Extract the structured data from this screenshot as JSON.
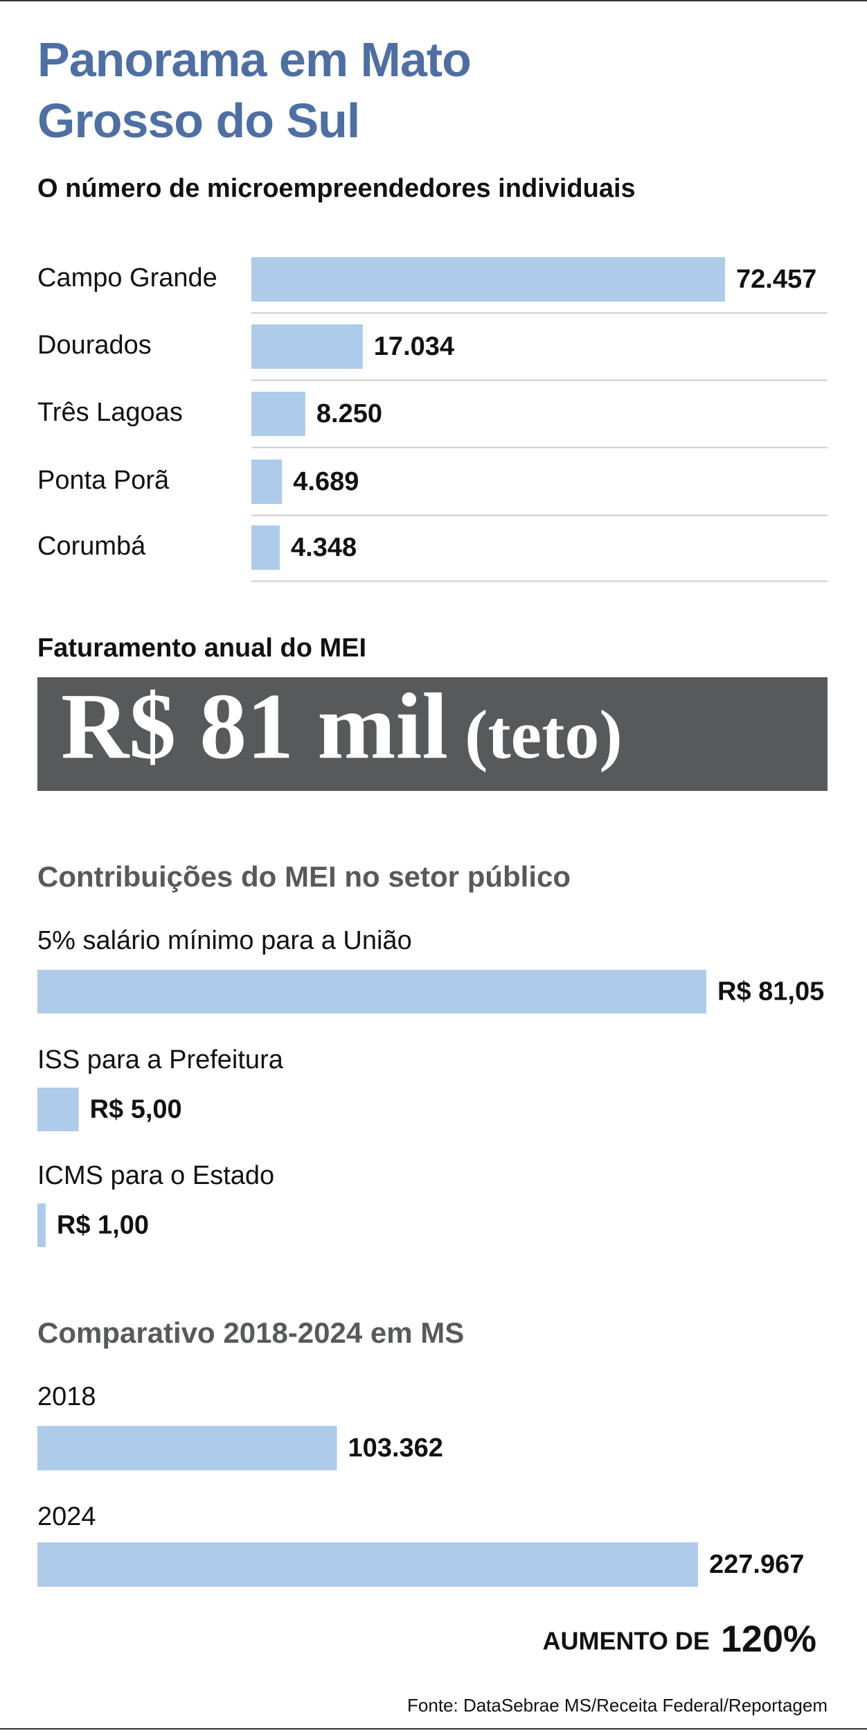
{
  "title": "Panorama em Mato Grosso do Sul",
  "chart_data": [
    {
      "type": "bar",
      "title": "O número de microempreendedores individuais",
      "categories": [
        "Campo Grande",
        "Dourados",
        "Três Lagoas",
        "Ponta Porã",
        "Corumbá"
      ],
      "values": [
        72457,
        17034,
        8250,
        4689,
        4348
      ],
      "value_labels": [
        "72.457",
        "17.034",
        "8.250",
        "4.689",
        "4.348"
      ],
      "color": "#aecbea"
    },
    {
      "type": "bar",
      "title": "Contribuições do MEI no setor público",
      "categories": [
        "5% salário mínimo para a União",
        "ISS para a Prefeitura",
        "ICMS para o Estado"
      ],
      "values": [
        81.05,
        5.0,
        1.0
      ],
      "value_labels": [
        "R$ 81,05",
        "R$ 5,00",
        "R$ 1,00"
      ],
      "color": "#aecbea"
    },
    {
      "type": "bar",
      "title": "Comparativo 2018-2024 em MS",
      "categories": [
        "2018",
        "2024"
      ],
      "values": [
        103362,
        227967
      ],
      "value_labels": [
        "103.362",
        "227.967"
      ],
      "color": "#aecbea"
    }
  ],
  "highlight": {
    "title": "Faturamento anual do MEI",
    "value": "R$ 81 mil",
    "note": "(teto)"
  },
  "increase": {
    "label": "AUMENTO DE",
    "value": "120%"
  },
  "source": "Fonte: DataSebrae MS/Receita Federal/Reportagem"
}
